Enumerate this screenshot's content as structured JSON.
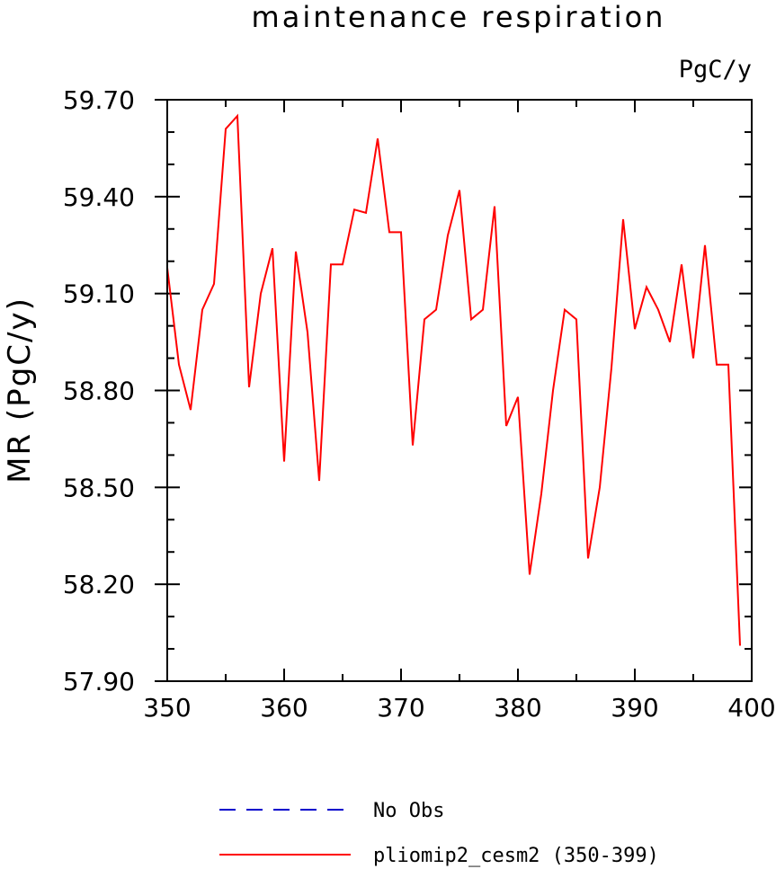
{
  "chart_data": {
    "type": "line",
    "title": "maintenance respiration",
    "units": "PgC/y",
    "ylabel": "MR  (PgC/y)",
    "xlabel": "",
    "xlim": [
      350,
      400
    ],
    "ylim": [
      57.9,
      59.7
    ],
    "xticks": [
      "350",
      "360",
      "370",
      "380",
      "390",
      "400"
    ],
    "yticks": [
      "57.90",
      "58.20",
      "58.50",
      "58.80",
      "59.10",
      "59.40",
      "59.70"
    ],
    "legend_position": "bottom",
    "series": [
      {
        "name": "No Obs",
        "color": "#0000cc",
        "dash": "dashed",
        "x": [],
        "values": []
      },
      {
        "name": "pliomip2_cesm2 (350-399)",
        "color": "#ff0000",
        "dash": "solid",
        "x": [
          350,
          351,
          352,
          353,
          354,
          355,
          356,
          357,
          358,
          359,
          360,
          361,
          362,
          363,
          364,
          365,
          366,
          367,
          368,
          369,
          370,
          371,
          372,
          373,
          374,
          375,
          376,
          377,
          378,
          379,
          380,
          381,
          382,
          383,
          384,
          385,
          386,
          387,
          388,
          389,
          390,
          391,
          392,
          393,
          394,
          395,
          396,
          397,
          398,
          399
        ],
        "values": [
          59.18,
          58.88,
          58.74,
          59.05,
          59.13,
          59.61,
          59.65,
          58.81,
          59.1,
          59.24,
          58.58,
          59.23,
          58.98,
          58.52,
          59.19,
          59.19,
          59.36,
          59.35,
          59.58,
          59.29,
          59.29,
          58.63,
          59.02,
          59.05,
          59.28,
          59.42,
          59.02,
          59.05,
          59.37,
          58.69,
          58.78,
          58.23,
          58.48,
          58.8,
          59.05,
          59.02,
          58.28,
          58.5,
          58.87,
          59.33,
          58.99,
          59.12,
          59.05,
          58.95,
          59.19,
          58.9,
          59.25,
          58.88,
          58.88,
          58.01
        ]
      }
    ]
  }
}
